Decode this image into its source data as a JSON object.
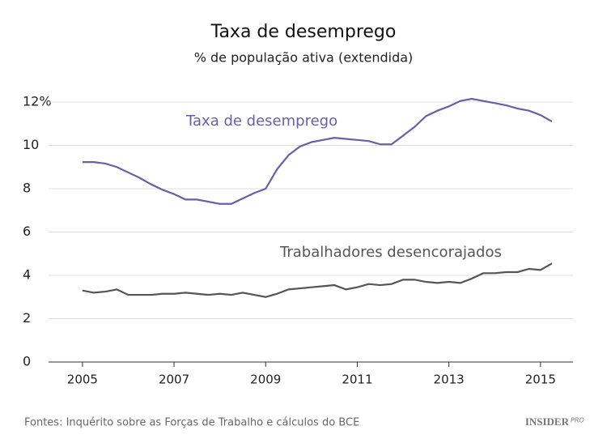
{
  "chart_data": {
    "type": "line",
    "title": "Taxa de desemprego",
    "subtitle": "% de população ativa (extendida)",
    "source": "Fontes: Inquérito sobre as Forças de Trabalho e cálculos do BCE",
    "logo": {
      "text": "INSIDER",
      "tag": "PRO"
    },
    "x": [
      2005,
      2005.25,
      2005.5,
      2005.75,
      2006,
      2006.25,
      2006.5,
      2006.75,
      2007,
      2007.25,
      2007.5,
      2007.75,
      2008,
      2008.25,
      2008.5,
      2008.75,
      2009,
      2009.25,
      2009.5,
      2009.75,
      2010,
      2010.25,
      2010.5,
      2010.75,
      2011,
      2011.25,
      2011.5,
      2011.75,
      2012,
      2012.25,
      2012.5,
      2012.75,
      2013,
      2013.25,
      2013.5,
      2013.75,
      2014,
      2014.25,
      2014.5,
      2014.75,
      2015,
      2015.25
    ],
    "series": [
      {
        "name": "Taxa de desemprego",
        "color": "#6b5ea6",
        "values": [
          9.23,
          9.23,
          9.16,
          9.0,
          8.75,
          8.5,
          8.2,
          7.95,
          7.75,
          7.5,
          7.5,
          7.4,
          7.3,
          7.3,
          7.55,
          7.8,
          8.0,
          8.9,
          9.55,
          9.95,
          10.15,
          10.25,
          10.35,
          10.3,
          10.25,
          10.2,
          10.05,
          10.05,
          10.45,
          10.85,
          11.35,
          11.6,
          11.8,
          12.05,
          12.15,
          12.05,
          11.95,
          11.85,
          11.7,
          11.6,
          11.4,
          11.1
        ]
      },
      {
        "name": "Trabalhadores desencorajados",
        "color": "#555555",
        "values": [
          3.3,
          3.2,
          3.25,
          3.35,
          3.1,
          3.1,
          3.1,
          3.15,
          3.15,
          3.2,
          3.15,
          3.1,
          3.15,
          3.1,
          3.2,
          3.1,
          3.0,
          3.15,
          3.35,
          3.4,
          3.45,
          3.5,
          3.55,
          3.35,
          3.45,
          3.6,
          3.55,
          3.6,
          3.8,
          3.8,
          3.7,
          3.65,
          3.7,
          3.65,
          3.85,
          4.1,
          4.1,
          4.15,
          4.15,
          4.3,
          4.25,
          4.55
        ]
      }
    ],
    "xlim": [
      2004.26,
      2015.71
    ],
    "xticks": [
      2005,
      2007,
      2009,
      2011,
      2013,
      2015
    ],
    "ylim": [
      0,
      12
    ],
    "yticks": [
      0,
      2,
      4,
      6,
      8,
      10,
      {
        "value": 12,
        "label": "12%"
      }
    ],
    "grid": true
  }
}
